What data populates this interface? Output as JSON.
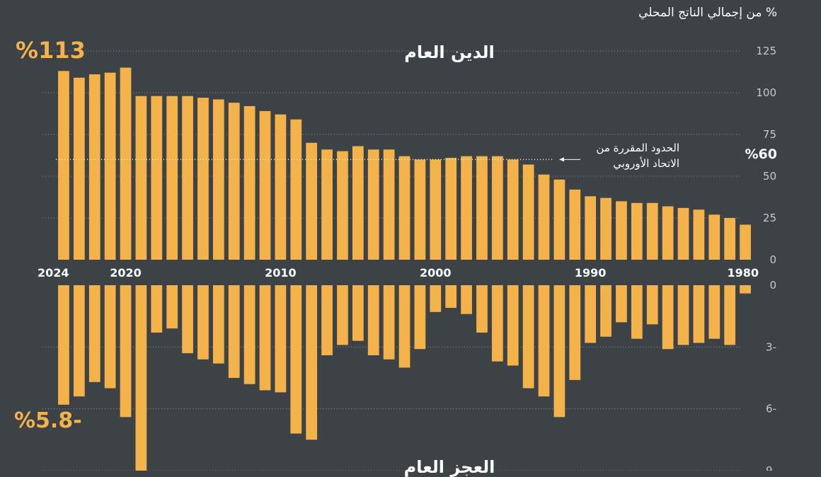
{
  "header": {
    "unit_label": "% من إجمالي الناتج المحلي"
  },
  "annotations": {
    "debt_latest": "%113",
    "deficit_latest": "%5.8-",
    "debt_title": "الدين العام",
    "deficit_title": "العجز العام",
    "eu_limit_label": "الحدود المقررة من الاتحاد الأوروبي",
    "eu_limit_value": "%60"
  },
  "colors": {
    "background": "#3c4245",
    "bar": "#f3b24a",
    "grid": "#8a8f91",
    "text": "#ffffff",
    "tick_text": "#c7cacb"
  },
  "chart_data": [
    {
      "type": "bar",
      "title": "الدين العام",
      "ylabel": "% من إجمالي الناتج المحلي",
      "x": [
        2024,
        2023,
        2022,
        2021,
        2020,
        2019,
        2018,
        2017,
        2016,
        2015,
        2014,
        2013,
        2012,
        2011,
        2010,
        2009,
        2008,
        2007,
        2006,
        2005,
        2004,
        2003,
        2002,
        2001,
        2000,
        1999,
        1998,
        1997,
        1996,
        1995,
        1994,
        1993,
        1992,
        1991,
        1990,
        1989,
        1988,
        1987,
        1986,
        1985,
        1984,
        1983,
        1982,
        1981,
        1980
      ],
      "x_tick_labels": [
        "2024",
        "2020",
        "2010",
        "2000",
        "1990",
        "1980"
      ],
      "values": [
        113,
        109,
        111,
        112,
        115,
        98,
        98,
        98,
        98,
        97,
        96,
        94,
        92,
        89,
        87,
        84,
        70,
        66,
        65,
        68,
        66,
        66,
        62,
        60,
        60,
        61,
        62,
        62,
        62,
        60,
        57,
        51,
        48,
        42,
        38,
        37,
        35,
        34,
        34,
        32,
        31,
        30,
        27,
        25,
        21
      ],
      "ylim": [
        0,
        125
      ],
      "yticks": [
        0,
        25,
        50,
        75,
        100,
        125
      ],
      "reference_line": {
        "value": 60,
        "label": "الحدود المقررة من الاتحاد الأوروبي"
      },
      "grid": true
    },
    {
      "type": "bar",
      "title": "العجز العام",
      "x": [
        2024,
        2023,
        2022,
        2021,
        2020,
        2019,
        2018,
        2017,
        2016,
        2015,
        2014,
        2013,
        2012,
        2011,
        2010,
        2009,
        2008,
        2007,
        2006,
        2005,
        2004,
        2003,
        2002,
        2001,
        2000,
        1999,
        1998,
        1997,
        1996,
        1995,
        1994,
        1993,
        1992,
        1991,
        1990,
        1989,
        1988,
        1987,
        1986,
        1985,
        1984,
        1983,
        1982,
        1981,
        1980
      ],
      "values": [
        -5.8,
        -5.4,
        -4.7,
        -5.0,
        -6.4,
        -9.0,
        -2.3,
        -2.1,
        -3.3,
        -3.6,
        -3.8,
        -4.5,
        -4.8,
        -5.1,
        -5.2,
        -7.2,
        -7.5,
        -3.4,
        -2.9,
        -2.7,
        -3.4,
        -3.6,
        -4.0,
        -3.1,
        -1.3,
        -1.1,
        -1.4,
        -2.3,
        -3.7,
        -3.9,
        -5.0,
        -5.4,
        -6.4,
        -4.6,
        -2.8,
        -2.5,
        -1.8,
        -2.6,
        -1.9,
        -3.1,
        -2.9,
        -2.8,
        -2.6,
        -2.9,
        -0.4
      ],
      "ylim": [
        -9,
        0
      ],
      "yticks": [
        0,
        -3,
        -6,
        -9
      ],
      "ytick_labels": [
        "0",
        "3-",
        "6-",
        "9-"
      ],
      "grid": true
    }
  ]
}
